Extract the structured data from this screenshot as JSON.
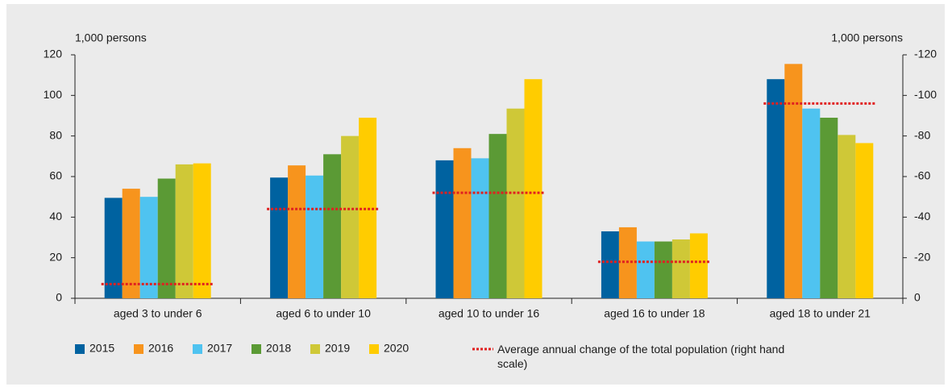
{
  "chart_data": {
    "type": "bar",
    "y_label": "1,000 persons",
    "y2_label": "1,000 persons",
    "categories": [
      "aged 3 to under 6",
      "aged 6 to under 10",
      "aged 10 to under 16",
      "aged 16 to under 18",
      "aged 18 to under 21"
    ],
    "series": [
      {
        "name": "2015",
        "color": "#0062a0",
        "values": [
          49.5,
          59.5,
          68,
          33,
          108
        ]
      },
      {
        "name": "2016",
        "color": "#f7941d",
        "values": [
          54,
          65.5,
          74,
          35,
          115.5
        ]
      },
      {
        "name": "2017",
        "color": "#4fc3f0",
        "values": [
          50,
          60.5,
          69,
          28,
          93.5
        ]
      },
      {
        "name": "2018",
        "color": "#5b9a35",
        "values": [
          59,
          71,
          81,
          28,
          89
        ]
      },
      {
        "name": "2019",
        "color": "#cfc837",
        "values": [
          66,
          80,
          93.5,
          29,
          80.5
        ]
      },
      {
        "name": "2020",
        "color": "#ffcc00",
        "values": [
          66.5,
          89,
          108,
          32,
          76.5
        ]
      },
      {
        "name": "Average annual change of the total population (right hand scale)",
        "color": "#e02020",
        "type": "dashed-line",
        "axis": "y2",
        "values": [
          -7,
          -44,
          -52,
          -18,
          -96
        ]
      }
    ],
    "ylim": [
      0,
      120
    ],
    "yticks": [
      0,
      20,
      40,
      60,
      80,
      100,
      120
    ],
    "y2lim": [
      0,
      -120
    ],
    "y2ticks": [
      0,
      -20,
      -40,
      -60,
      -80,
      -100,
      -120
    ]
  }
}
